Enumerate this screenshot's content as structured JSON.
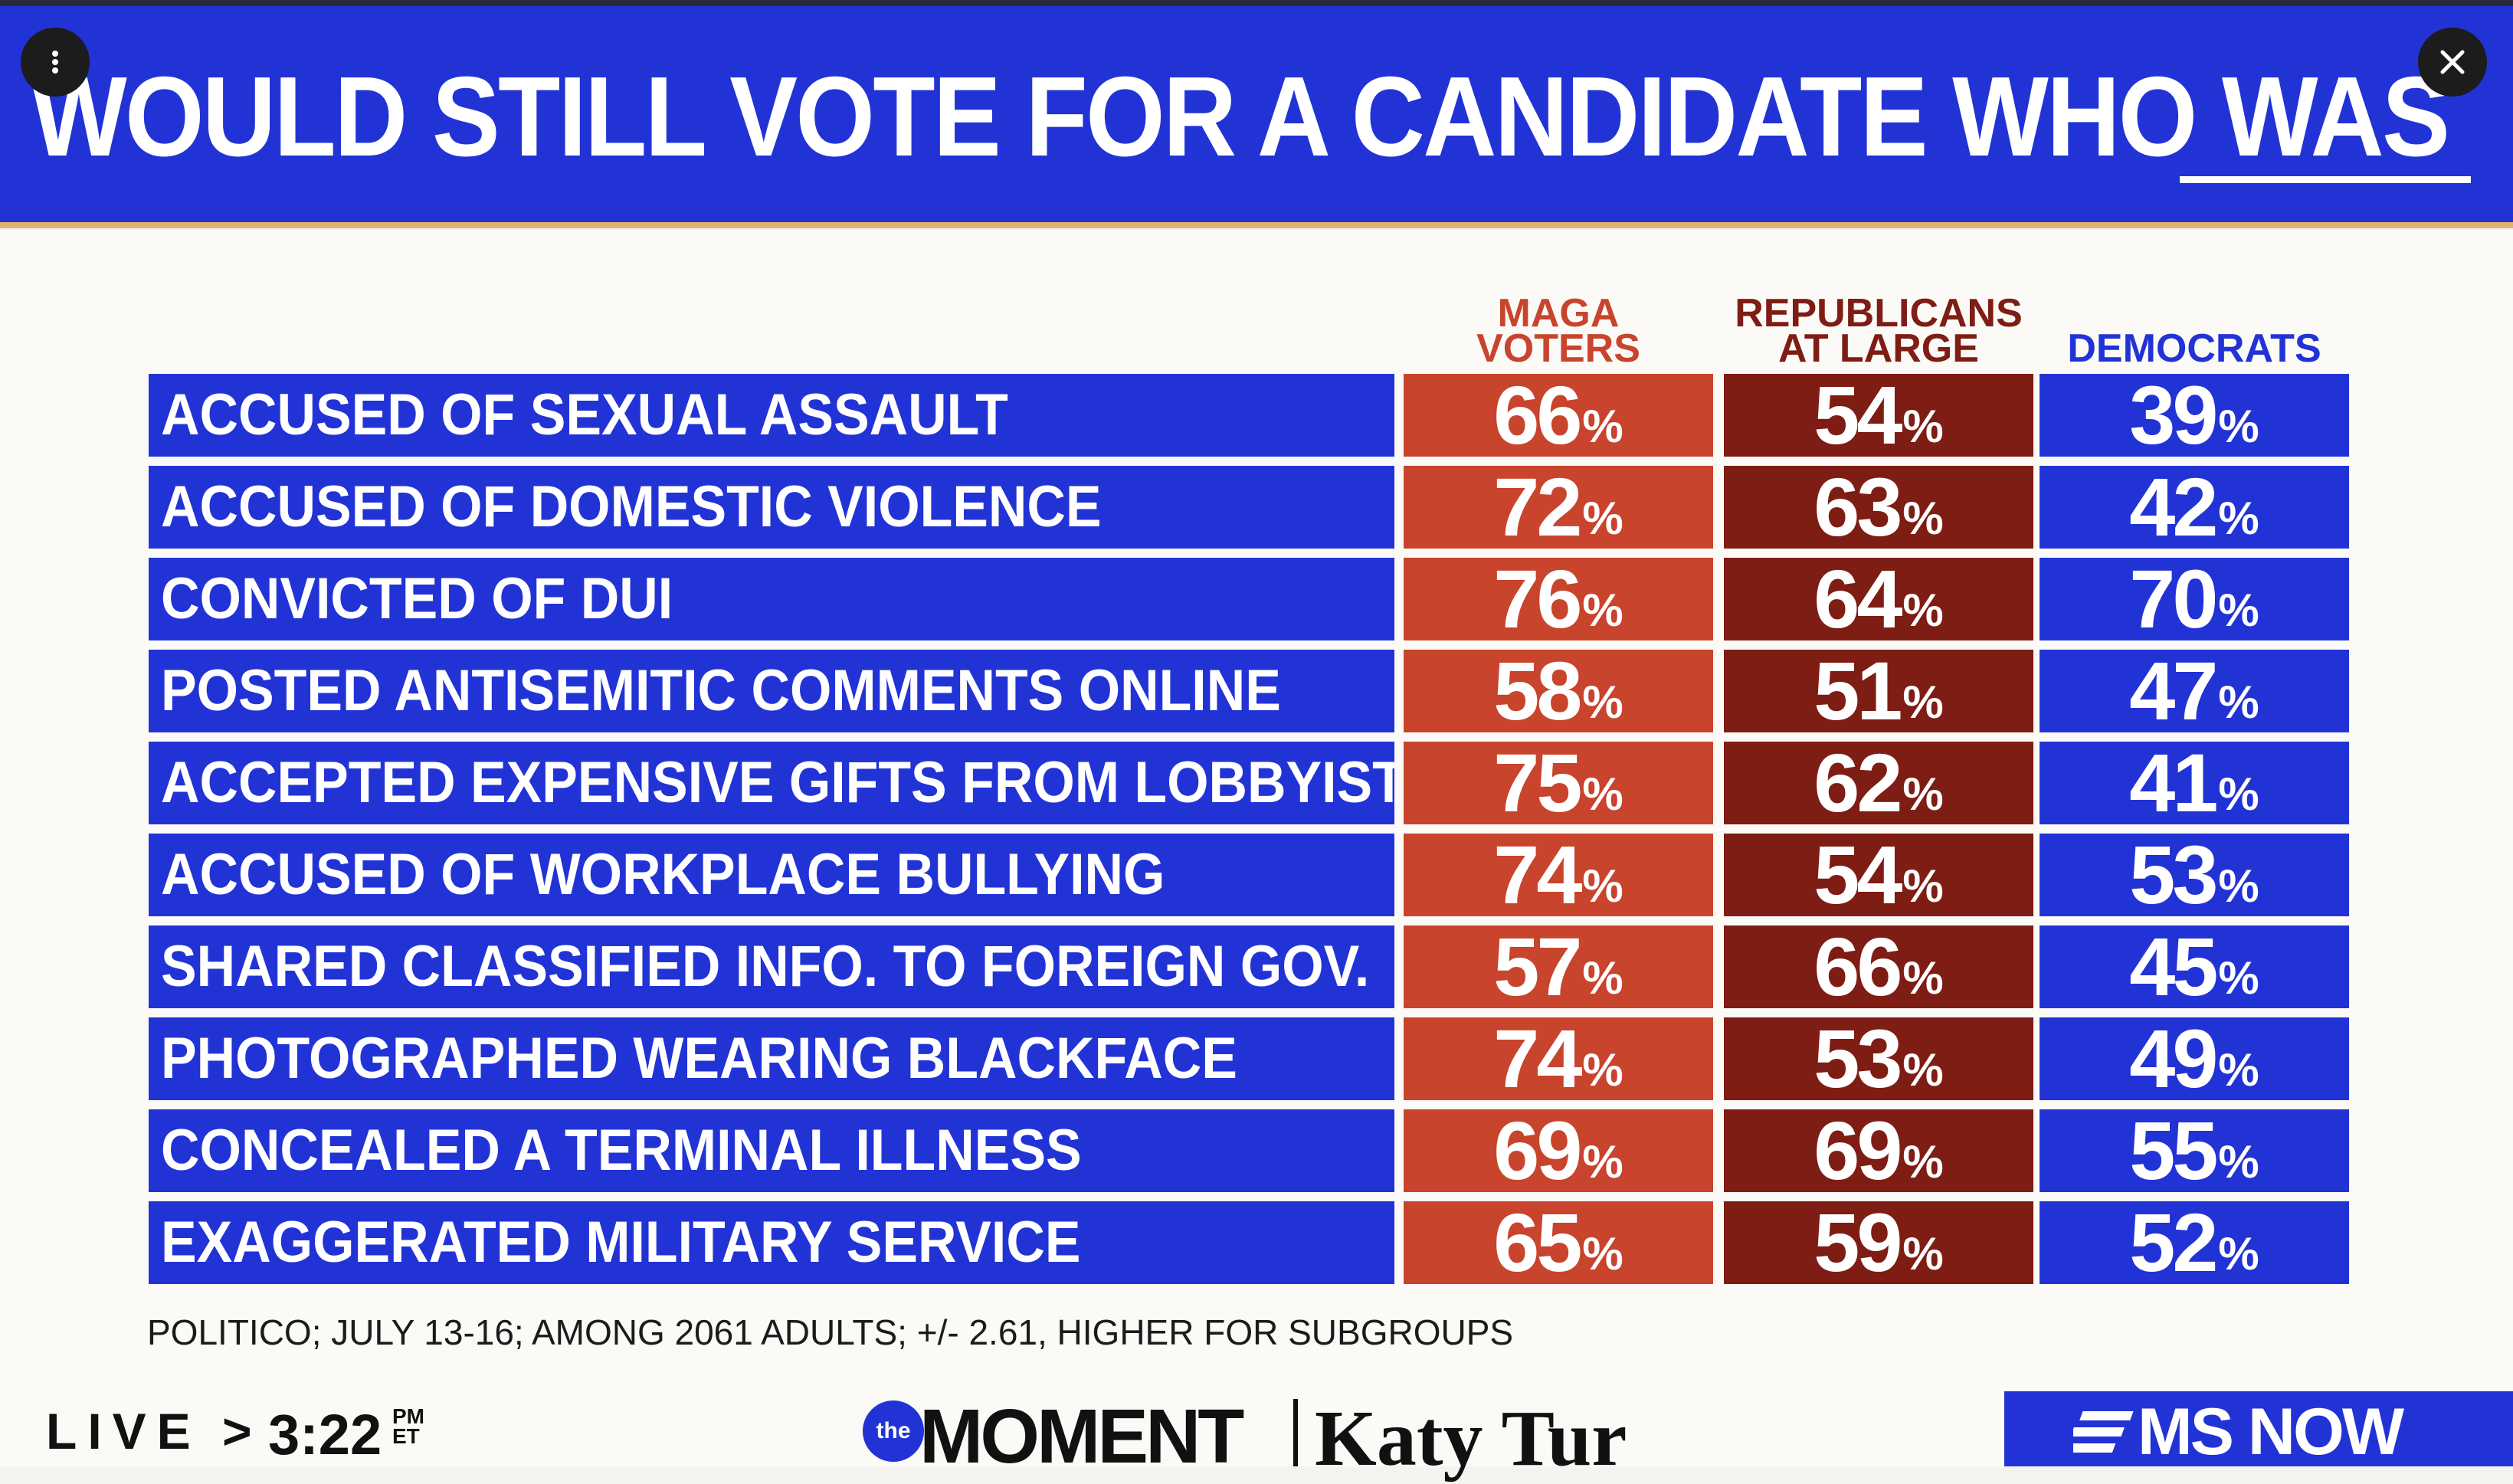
{
  "title": "WOULD STILL VOTE FOR A CANDIDATE WHO WAS",
  "columns": [
    {
      "label": "MAGA\nVOTERS",
      "color": "#c8442c",
      "header_color": "#c8442c"
    },
    {
      "label": "REPUBLICANS\nAT LARGE",
      "color": "#7e1d14",
      "header_color": "#7e1d14"
    },
    {
      "label": "DEMOCRATS",
      "color": "#2233d6",
      "header_color": "#2233d6"
    }
  ],
  "rows": [
    {
      "label": "ACCUSED OF SEXUAL ASSAULT",
      "values": [
        "66",
        "54",
        "39"
      ]
    },
    {
      "label": "ACCUSED OF DOMESTIC VIOLENCE",
      "values": [
        "72",
        "63",
        "42"
      ]
    },
    {
      "label": "CONVICTED OF DUI",
      "values": [
        "76",
        "64",
        "70"
      ]
    },
    {
      "label": "POSTED ANTISEMITIC COMMENTS ONLINE",
      "values": [
        "58",
        "51",
        "47"
      ]
    },
    {
      "label": "ACCEPTED EXPENSIVE GIFTS FROM LOBBYISTS",
      "values": [
        "75",
        "62",
        "41"
      ]
    },
    {
      "label": "ACCUSED OF WORKPLACE BULLYING",
      "values": [
        "74",
        "54",
        "53"
      ]
    },
    {
      "label": "SHARED CLASSIFIED INFO. TO FOREIGN GOV.",
      "values": [
        "57",
        "66",
        "45"
      ]
    },
    {
      "label": "PHOTOGRAPHED WEARING BLACKFACE",
      "values": [
        "74",
        "53",
        "49"
      ]
    },
    {
      "label": "CONCEALED A TERMINAL ILLNESS",
      "values": [
        "69",
        "69",
        "55"
      ]
    },
    {
      "label": "EXAGGERATED MILITARY SERVICE",
      "values": [
        "65",
        "59",
        "52"
      ]
    }
  ],
  "percent_sign": "%",
  "source": "POLITICO; JULY 13-16; AMONG 2061 ADULTS; +/- 2.61, HIGHER FOR SUBGROUPS",
  "ticker": {
    "live": "LIVE",
    "arrow": ">",
    "time": "3:22",
    "time_suffix": "PM\nET",
    "show_logo": "the",
    "show_name": "MOMENT",
    "host": "Katy Tur",
    "network": "MS NOW"
  },
  "controls": {
    "menu_icon": "more-vertical-icon",
    "close_icon": "close-icon"
  },
  "colors": {
    "brand_blue": "#2233d6",
    "maga_red": "#c8442c",
    "gop_dark_red": "#7e1d14",
    "accent_gold": "#e2b36a"
  }
}
